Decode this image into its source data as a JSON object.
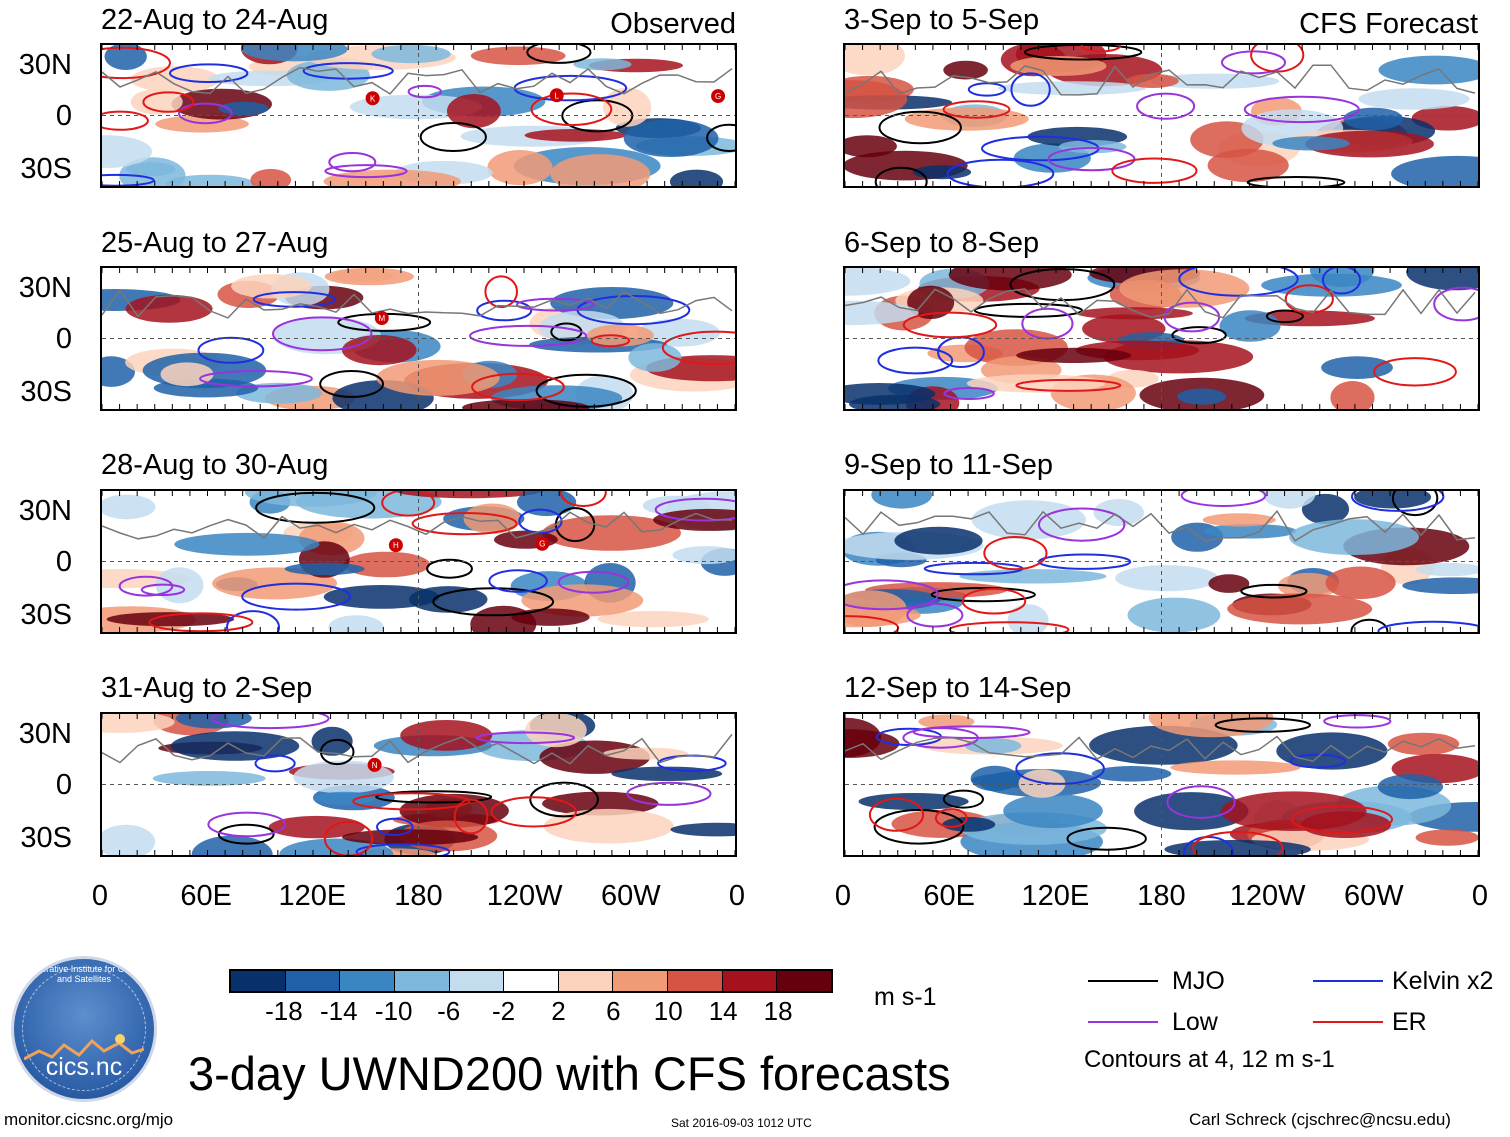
{
  "chart_data": {
    "type": "heatmap",
    "title": "3-day UWND200 with CFS forecasts",
    "variable": "UWND200",
    "units": "m s-1",
    "x_ticks": [
      "0",
      "60E",
      "120E",
      "180",
      "120W",
      "60W",
      "0"
    ],
    "y_ticks": [
      "30N",
      "0",
      "30S"
    ],
    "colorbar": {
      "ticks": [
        "-18",
        "-14",
        "-10",
        "-6",
        "-2",
        "2",
        "6",
        "10",
        "14",
        "18"
      ],
      "colors": [
        "#08306b",
        "#1f61a8",
        "#3a86c3",
        "#7db7dc",
        "#c3dcee",
        "#ffffff",
        "#fbd3bd",
        "#f19a76",
        "#d65443",
        "#a5121d",
        "#67000d"
      ]
    },
    "legend": [
      {
        "label": "MJO",
        "color": "#000000"
      },
      {
        "label": "Kelvin x2",
        "color": "#1f2fe0"
      },
      {
        "label": "Low",
        "color": "#9933dd"
      },
      {
        "label": "ER",
        "color": "#e01818"
      }
    ],
    "contour_note": "Contours at 4, 12 m s-1",
    "columns": [
      {
        "label": "Observed",
        "panels": [
          {
            "title": "22-Aug to 24-Aug",
            "storms": [
              "K",
              "L",
              "G"
            ]
          },
          {
            "title": "25-Aug to 27-Aug",
            "storms": [
              "M"
            ]
          },
          {
            "title": "28-Aug to 30-Aug",
            "storms": [
              "H",
              "G"
            ]
          },
          {
            "title": "31-Aug to 2-Sep",
            "storms": [
              "N"
            ]
          }
        ]
      },
      {
        "label": "CFS Forecast",
        "panels": [
          {
            "title": "3-Sep to 5-Sep",
            "storms": []
          },
          {
            "title": "6-Sep to 8-Sep",
            "storms": []
          },
          {
            "title": "9-Sep to 11-Sep",
            "storms": []
          },
          {
            "title": "12-Sep to 14-Sep",
            "storms": []
          }
        ]
      }
    ]
  },
  "logo": {
    "text": "cics.nc",
    "arc_text": "Cooperative Institute for Climate and Satellites"
  },
  "footer": {
    "url": "monitor.cicsnc.org/mjo",
    "timestamp": "Sat 2016-09-03 1012 UTC",
    "author": "Carl Schreck (cjschrec@ncsu.edu)"
  }
}
